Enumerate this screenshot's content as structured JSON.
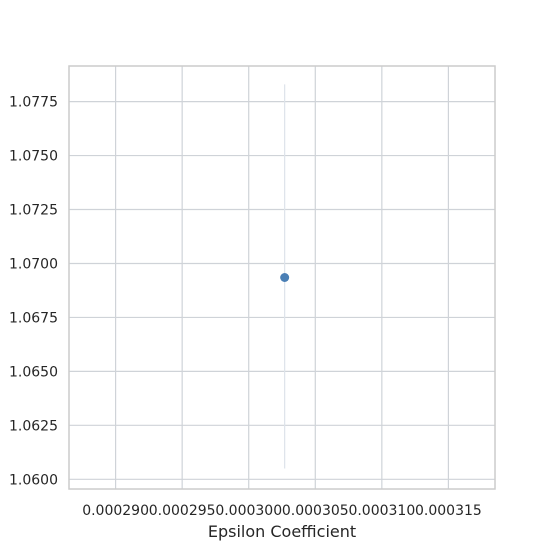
{
  "chart_data": {
    "type": "scatter",
    "title": "",
    "xlabel": "Epsilon Coefficient",
    "ylabel": "",
    "xlim": [
      0.0002865,
      0.0003185
    ],
    "ylim": [
      1.05955,
      1.07915
    ],
    "x_ticks": [
      0.00029,
      0.000295,
      0.0003,
      0.000305,
      0.00031,
      0.000315
    ],
    "x_tick_labels": [
      "0.000290",
      "0.000295",
      "0.000300",
      "0.000305",
      "0.000310",
      "0.000315"
    ],
    "y_ticks": [
      1.06,
      1.0625,
      1.065,
      1.0675,
      1.07,
      1.0725,
      1.075,
      1.0775
    ],
    "y_tick_labels": [
      "1.0600",
      "1.0625",
      "1.0650",
      "1.0675",
      "1.0700",
      "1.0725",
      "1.0750",
      "1.0775"
    ],
    "grid": true,
    "points": [
      {
        "x": 0.0003027,
        "y": 1.06935,
        "y_err_low": 1.0605,
        "y_err_high": 1.0783
      }
    ],
    "colors": {
      "point": "#4a7fb5",
      "errorbar": "#dde3ea",
      "grid": "#cfd3d8",
      "frame": "#cccccc"
    }
  }
}
